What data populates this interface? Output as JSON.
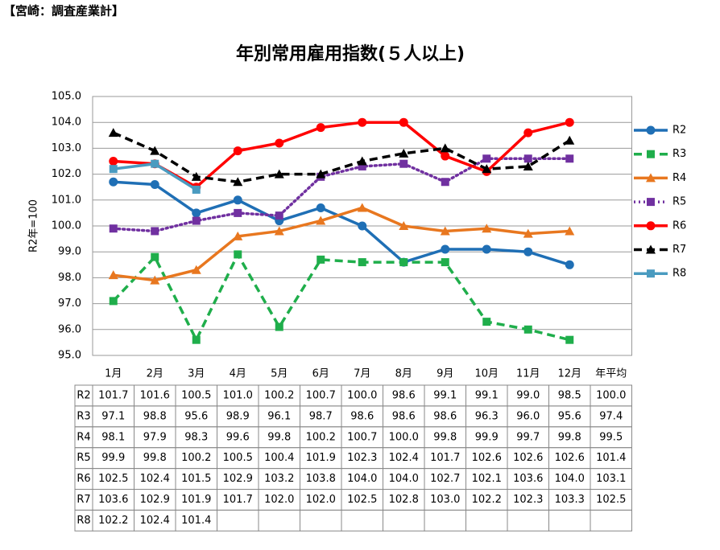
{
  "chart_data": {
    "type": "line",
    "header": "【宮崎：調査産業計】",
    "title": "年別常用雇用指数(５人以上)",
    "y_label": "R2年=100",
    "categories": [
      "1月",
      "2月",
      "3月",
      "4月",
      "5月",
      "6月",
      "7月",
      "8月",
      "9月",
      "10月",
      "11月",
      "12月"
    ],
    "average_label": "年平均",
    "ylim": [
      95,
      105
    ],
    "yticks": [
      {
        "value": 95,
        "label": "95.0"
      },
      {
        "value": 96,
        "label": "96.0"
      },
      {
        "value": 97,
        "label": "97.0"
      },
      {
        "value": 98,
        "label": "98.0"
      },
      {
        "value": 99,
        "label": "99.0"
      },
      {
        "value": 100,
        "label": "100.0"
      },
      {
        "value": 101,
        "label": "101.0"
      },
      {
        "value": 102,
        "label": "102.0"
      },
      {
        "value": 103,
        "label": "103.0"
      },
      {
        "value": 104,
        "label": "104.0"
      },
      {
        "value": 105,
        "label": "105.0"
      }
    ],
    "grid": true,
    "legend": "right",
    "series": [
      {
        "name": "R2",
        "color": "#1f6fb5",
        "marker": "circle",
        "dash": "solid",
        "values": [
          101.7,
          101.6,
          100.5,
          101.0,
          100.2,
          100.7,
          100.0,
          98.6,
          99.1,
          99.1,
          99.0,
          98.5
        ],
        "value_labels": [
          "101.7",
          "101.6",
          "100.5",
          "101.0",
          "100.2",
          "100.7",
          "100.0",
          "98.6",
          "99.1",
          "99.1",
          "99.0",
          "98.5"
        ],
        "average": "100.0"
      },
      {
        "name": "R3",
        "color": "#1fae4b",
        "marker": "square",
        "dash": "dashed",
        "values": [
          97.1,
          98.8,
          95.6,
          98.9,
          96.1,
          98.7,
          98.6,
          98.6,
          98.6,
          96.3,
          96.0,
          95.6
        ],
        "value_labels": [
          "97.1",
          "98.8",
          "95.6",
          "98.9",
          "96.1",
          "98.7",
          "98.6",
          "98.6",
          "98.6",
          "96.3",
          "96.0",
          "95.6"
        ],
        "average": "97.4"
      },
      {
        "name": "R4",
        "color": "#e8771f",
        "marker": "triangle",
        "dash": "solid",
        "values": [
          98.1,
          97.9,
          98.3,
          99.6,
          99.8,
          100.2,
          100.7,
          100.0,
          99.8,
          99.9,
          99.7,
          99.8
        ],
        "value_labels": [
          "98.1",
          "97.9",
          "98.3",
          "99.6",
          "99.8",
          "100.2",
          "100.7",
          "100.0",
          "99.8",
          "99.9",
          "99.7",
          "99.8"
        ],
        "average": "99.5"
      },
      {
        "name": "R5",
        "color": "#7030a0",
        "marker": "square",
        "dash": "dotted",
        "values": [
          99.9,
          99.8,
          100.2,
          100.5,
          100.4,
          101.9,
          102.3,
          102.4,
          101.7,
          102.6,
          102.6,
          102.6
        ],
        "value_labels": [
          "99.9",
          "99.8",
          "100.2",
          "100.5",
          "100.4",
          "101.9",
          "102.3",
          "102.4",
          "101.7",
          "102.6",
          "102.6",
          "102.6"
        ],
        "average": "101.4"
      },
      {
        "name": "R6",
        "color": "#ff0000",
        "marker": "circle",
        "dash": "solid",
        "values": [
          102.5,
          102.4,
          101.5,
          102.9,
          103.2,
          103.8,
          104.0,
          104.0,
          102.7,
          102.1,
          103.6,
          104.0
        ],
        "value_labels": [
          "102.5",
          "102.4",
          "101.5",
          "102.9",
          "103.2",
          "103.8",
          "104.0",
          "104.0",
          "102.7",
          "102.1",
          "103.6",
          "104.0"
        ],
        "average": "103.1"
      },
      {
        "name": "R7",
        "color": "#000000",
        "marker": "triangle",
        "dash": "dashed",
        "values": [
          103.6,
          102.9,
          101.9,
          101.7,
          102.0,
          102.0,
          102.5,
          102.8,
          103.0,
          102.2,
          102.3,
          103.3
        ],
        "value_labels": [
          "103.6",
          "102.9",
          "101.9",
          "101.7",
          "102.0",
          "102.0",
          "102.5",
          "102.8",
          "103.0",
          "102.2",
          "102.3",
          "103.3"
        ],
        "average": "102.5"
      },
      {
        "name": "R8",
        "color": "#4a9bc0",
        "marker": "square",
        "dash": "solid",
        "values": [
          102.2,
          102.4,
          101.4,
          null,
          null,
          null,
          null,
          null,
          null,
          null,
          null,
          null
        ],
        "value_labels": [
          "102.2",
          "102.4",
          "101.4",
          null,
          null,
          null,
          null,
          null,
          null,
          null,
          null,
          null
        ],
        "average": null
      }
    ]
  }
}
